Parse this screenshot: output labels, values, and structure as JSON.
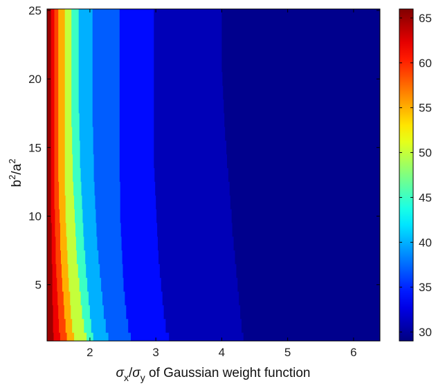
{
  "chart_data": {
    "type": "heatmap",
    "title": "",
    "xlabel": {
      "sym1": "σ",
      "sub1": "x",
      "slash": "/",
      "sym2": "σ",
      "sub2": "y",
      "rest": " of Gaussian weight function"
    },
    "ylabel": {
      "base1": "b",
      "sup1": "2",
      "slash": "/a",
      "sup2": "2"
    },
    "xlim": [
      1.35,
      6.4
    ],
    "ylim": [
      0.9,
      25.1
    ],
    "x_ticks": [
      2,
      3,
      4,
      5,
      6
    ],
    "y_ticks": [
      5,
      10,
      15,
      20,
      25
    ],
    "colorbar": {
      "clim": [
        29,
        66
      ],
      "ticks": [
        30,
        35,
        40,
        45,
        50,
        55,
        60,
        65
      ],
      "colormap": "jet"
    },
    "grid": false,
    "description_of_data": "contour boundaries: x position of each level boundary at listed y values",
    "y_samples": [
      1,
      2,
      3,
      4,
      5,
      6,
      7,
      8,
      9,
      10,
      11,
      12,
      13,
      14,
      15,
      16,
      17,
      18,
      19,
      20,
      21,
      22,
      23,
      24,
      25
    ],
    "bands": [
      {
        "value": 65,
        "right_x": [
          1.45,
          1.44,
          1.44,
          1.43,
          1.43,
          1.43,
          1.42,
          1.42,
          1.42,
          1.41,
          1.41,
          1.41,
          1.41,
          1.41,
          1.41,
          1.41,
          1.41,
          1.41,
          1.41,
          1.41,
          1.41,
          1.41,
          1.41,
          1.41,
          1.41
        ]
      },
      {
        "value": 62,
        "right_x": [
          1.55,
          1.53,
          1.52,
          1.51,
          1.5,
          1.49,
          1.48,
          1.48,
          1.47,
          1.47,
          1.46,
          1.46,
          1.46,
          1.46,
          1.46,
          1.46,
          1.46,
          1.46,
          1.46,
          1.46,
          1.46,
          1.46,
          1.46,
          1.46,
          1.46
        ]
      },
      {
        "value": 59,
        "right_x": [
          1.65,
          1.63,
          1.61,
          1.6,
          1.58,
          1.57,
          1.56,
          1.55,
          1.55,
          1.54,
          1.53,
          1.53,
          1.52,
          1.52,
          1.52,
          1.52,
          1.52,
          1.52,
          1.52,
          1.52,
          1.52,
          1.52,
          1.52,
          1.52,
          1.52
        ]
      },
      {
        "value": 55,
        "right_x": [
          1.76,
          1.73,
          1.71,
          1.7,
          1.68,
          1.67,
          1.66,
          1.65,
          1.64,
          1.63,
          1.63,
          1.62,
          1.62,
          1.62,
          1.62,
          1.62,
          1.62,
          1.62,
          1.62,
          1.62,
          1.62,
          1.62,
          1.62,
          1.62,
          1.62
        ]
      },
      {
        "value": 50,
        "right_x": [
          1.95,
          1.91,
          1.88,
          1.86,
          1.84,
          1.82,
          1.8,
          1.79,
          1.78,
          1.77,
          1.76,
          1.75,
          1.74,
          1.74,
          1.73,
          1.73,
          1.72,
          1.72,
          1.72,
          1.72,
          1.72,
          1.72,
          1.72,
          1.72,
          1.72
        ]
      },
      {
        "value": 45,
        "right_x": [
          2.05,
          2.02,
          2.0,
          1.98,
          1.96,
          1.94,
          1.93,
          1.91,
          1.9,
          1.89,
          1.88,
          1.87,
          1.86,
          1.85,
          1.85,
          1.84,
          1.84,
          1.83,
          1.83,
          1.83,
          1.83,
          1.83,
          1.83,
          1.83,
          1.83
        ]
      },
      {
        "value": 40,
        "right_x": [
          2.28,
          2.24,
          2.21,
          2.19,
          2.17,
          2.15,
          2.13,
          2.11,
          2.1,
          2.09,
          2.08,
          2.07,
          2.06,
          2.06,
          2.05,
          2.05,
          2.04,
          2.04,
          2.04,
          2.04,
          2.04,
          2.04,
          2.04,
          2.04,
          2.04
        ]
      },
      {
        "value": 37,
        "right_x": [
          2.62,
          2.58,
          2.55,
          2.53,
          2.51,
          2.5,
          2.49,
          2.48,
          2.47,
          2.46,
          2.46,
          2.46,
          2.45,
          2.45,
          2.45,
          2.45,
          2.45,
          2.45,
          2.45,
          2.45,
          2.45,
          2.45,
          2.45,
          2.45,
          2.45
        ]
      },
      {
        "value": 34,
        "right_x": [
          3.2,
          3.15,
          3.12,
          3.1,
          3.08,
          3.06,
          3.04,
          3.03,
          3.02,
          3.01,
          3.0,
          2.99,
          2.98,
          2.97,
          2.97,
          2.97,
          2.97,
          2.97,
          2.97,
          2.97,
          2.97,
          2.97,
          2.97,
          2.97,
          2.97
        ]
      },
      {
        "value": 31,
        "right_x": [
          4.33,
          4.3,
          4.28,
          4.26,
          4.24,
          4.22,
          4.2,
          4.18,
          4.16,
          4.15,
          4.13,
          4.12,
          4.1,
          4.08,
          4.07,
          4.05,
          4.04,
          4.03,
          4.02,
          4.01,
          4.0,
          4.0,
          4.0,
          4.0,
          4.0
        ]
      },
      {
        "value": 29.5,
        "right_x": [
          6.4,
          6.4,
          6.4,
          6.4,
          6.4,
          6.4,
          6.4,
          6.4,
          6.4,
          6.4,
          6.4,
          6.4,
          6.4,
          6.4,
          6.4,
          6.4,
          6.4,
          6.4,
          6.4,
          6.4,
          6.4,
          6.4,
          6.4,
          6.4,
          6.4
        ]
      }
    ]
  }
}
